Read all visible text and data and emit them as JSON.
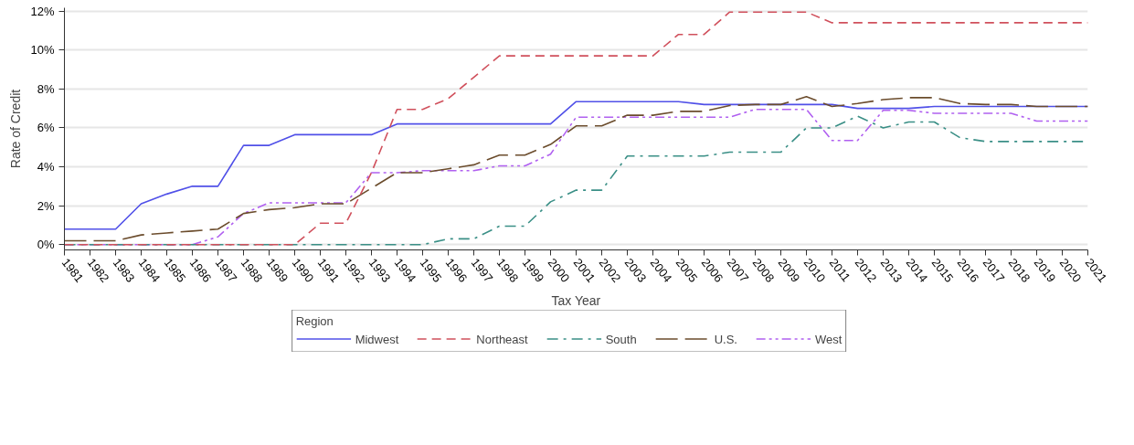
{
  "chart_data": {
    "type": "line",
    "xlabel": "Tax Year",
    "ylabel": "Rate of Credit",
    "legend_title": "Region",
    "legend": "bottom",
    "grid": "y",
    "x": [
      1981,
      1982,
      1983,
      1984,
      1985,
      1986,
      1987,
      1988,
      1989,
      1990,
      1991,
      1992,
      1993,
      1994,
      1995,
      1996,
      1997,
      1998,
      1999,
      2000,
      2001,
      2002,
      2003,
      2004,
      2005,
      2006,
      2007,
      2008,
      2009,
      2010,
      2011,
      2012,
      2013,
      2014,
      2015,
      2016,
      2017,
      2018,
      2019,
      2020,
      2021
    ],
    "xlim": [
      1981,
      2021
    ],
    "xticks": [
      1981,
      1982,
      1983,
      1984,
      1985,
      1986,
      1987,
      1988,
      1989,
      1990,
      1991,
      1992,
      1993,
      1994,
      1995,
      1996,
      1997,
      1998,
      1999,
      2000,
      2001,
      2002,
      2003,
      2004,
      2005,
      2006,
      2007,
      2008,
      2009,
      2010,
      2011,
      2012,
      2013,
      2014,
      2015,
      2016,
      2017,
      2018,
      2019,
      2020,
      2021
    ],
    "ylim": [
      -0.27,
      12.17
    ],
    "yticks": [
      {
        "value": 0,
        "label": "0%"
      },
      {
        "value": 2,
        "label": "2%"
      },
      {
        "value": 4,
        "label": "4%"
      },
      {
        "value": 6,
        "label": "6%"
      },
      {
        "value": 8,
        "label": "8%"
      },
      {
        "value": 10,
        "label": "10%"
      },
      {
        "value": 12,
        "label": "12%"
      }
    ],
    "series": [
      {
        "name": "Midwest",
        "color": "#5050e8",
        "line_style": "solid",
        "values": [
          0.8,
          0.8,
          0.8,
          2.1,
          2.6,
          3.0,
          3.0,
          5.1,
          5.1,
          5.65,
          5.65,
          5.65,
          5.65,
          6.2,
          6.2,
          6.2,
          6.2,
          6.2,
          6.2,
          6.2,
          7.35,
          7.35,
          7.35,
          7.35,
          7.35,
          7.2,
          7.2,
          7.2,
          7.2,
          7.2,
          7.2,
          7.0,
          7.0,
          7.0,
          7.1,
          7.1,
          7.1,
          7.1,
          7.1,
          7.1,
          7.1
        ]
      },
      {
        "name": "Northeast",
        "color": "#d0505c",
        "line_style": "dashed",
        "values": [
          0,
          0,
          0,
          0,
          0,
          0,
          0,
          0,
          0,
          0,
          1.1,
          1.1,
          3.7,
          6.95,
          6.95,
          7.5,
          8.6,
          9.7,
          9.7,
          9.7,
          9.7,
          9.7,
          9.7,
          9.7,
          10.8,
          10.8,
          11.95,
          11.95,
          11.95,
          11.95,
          11.4,
          11.4,
          11.4,
          11.4,
          11.4,
          11.4,
          11.4,
          11.4,
          11.4,
          11.4,
          11.4
        ]
      },
      {
        "name": "South",
        "color": "#3a8f86",
        "line_style": "dashdot",
        "values": [
          0,
          0,
          0,
          0,
          0,
          0,
          0,
          0,
          0,
          0,
          0,
          0,
          0,
          0,
          0,
          0.3,
          0.3,
          0.95,
          0.95,
          2.2,
          2.8,
          2.8,
          4.55,
          4.55,
          4.55,
          4.55,
          4.75,
          4.75,
          4.75,
          6.0,
          6.0,
          6.6,
          6.0,
          6.3,
          6.3,
          5.5,
          5.3,
          5.3,
          5.3,
          5.3,
          5.3
        ]
      },
      {
        "name": "U.S.",
        "color": "#6b4c2c",
        "line_style": "longdash",
        "values": [
          0.2,
          0.2,
          0.2,
          0.5,
          0.6,
          0.7,
          0.8,
          1.6,
          1.8,
          1.9,
          2.1,
          2.1,
          2.9,
          3.7,
          3.7,
          3.9,
          4.1,
          4.6,
          4.6,
          5.15,
          6.1,
          6.1,
          6.65,
          6.65,
          6.85,
          6.85,
          7.15,
          7.2,
          7.2,
          7.6,
          7.1,
          7.25,
          7.45,
          7.55,
          7.55,
          7.25,
          7.2,
          7.2,
          7.1,
          7.1,
          7.1
        ]
      },
      {
        "name": "West",
        "color": "#b060f0",
        "line_style": "dashdotdot",
        "values": [
          0,
          0,
          0,
          0,
          0,
          0,
          0.4,
          1.6,
          2.15,
          2.15,
          2.15,
          2.15,
          3.7,
          3.7,
          3.8,
          3.8,
          3.8,
          4.05,
          4.05,
          4.65,
          6.55,
          6.55,
          6.55,
          6.55,
          6.55,
          6.55,
          6.55,
          6.95,
          6.95,
          6.95,
          5.35,
          5.35,
          6.9,
          6.9,
          6.75,
          6.75,
          6.75,
          6.75,
          6.35,
          6.35,
          6.35
        ]
      }
    ]
  }
}
